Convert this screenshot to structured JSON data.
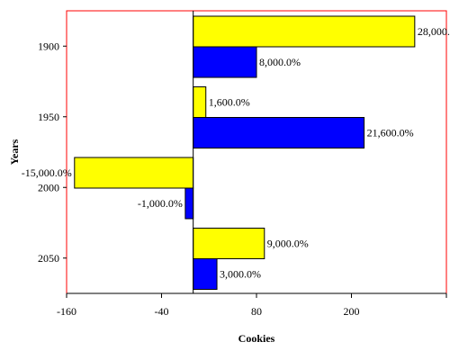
{
  "chart_data": {
    "type": "bar",
    "orientation": "horizontal",
    "categories": [
      "1900",
      "1950",
      "2000",
      "2050"
    ],
    "series": [
      {
        "color": "#ffff00",
        "values": [
          280,
          16,
          -150,
          90
        ],
        "labels": [
          "28,000.0%",
          "1,600.0%",
          "-15,000.0%",
          "9,000.0%"
        ]
      },
      {
        "color": "#0000ff",
        "values": [
          80,
          216,
          -10,
          30
        ],
        "labels": [
          "8,000.0%",
          "21,600.0%",
          "-1,000.0%",
          "3,000.0%"
        ]
      }
    ],
    "x_ticks": [
      -160,
      -40,
      80,
      200
    ],
    "x_tick_labels": [
      "-160",
      "-40",
      "80",
      "200"
    ],
    "xlabel": "Cookies",
    "ylabel": "Years",
    "xlim": [
      -160,
      320
    ],
    "grid": false,
    "legend": "none",
    "plot_border_color": "#ff0000"
  }
}
